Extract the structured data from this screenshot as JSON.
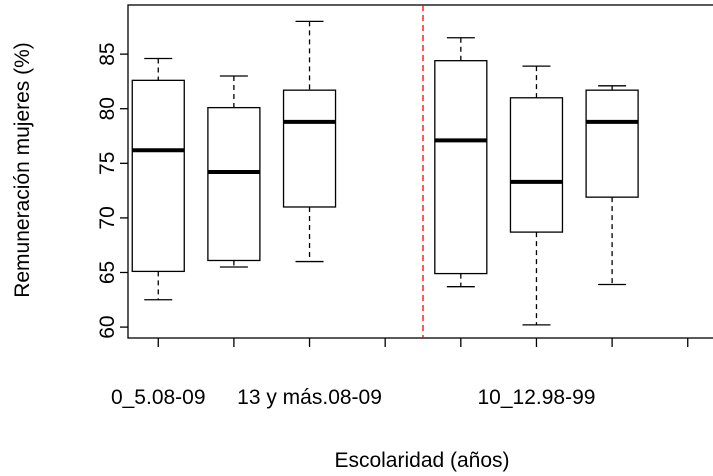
{
  "chart_data": {
    "type": "boxplot",
    "title": "",
    "xlabel": "Escolaridad (años)",
    "ylabel": "Remuneración mujeres (%)",
    "ylim": [
      59,
      89.5
    ],
    "yticks": [
      60,
      65,
      70,
      75,
      80,
      85
    ],
    "categories": [
      "0_5.08-09",
      "",
      "13 y más.08-09",
      "",
      "10_12.98-99",
      ""
    ],
    "visible_category_labels": [
      "0_5.08-09",
      "13 y más.08-09",
      "10_12.98-99"
    ],
    "boxes": [
      {
        "position": 1,
        "label": "0_5.08-09",
        "whisker_low": 62.5,
        "q1": 65.1,
        "median": 76.2,
        "q3": 82.6,
        "whisker_high": 84.6
      },
      {
        "position": 2,
        "label": "",
        "whisker_low": 65.5,
        "q1": 66.1,
        "median": 74.2,
        "q3": 80.1,
        "whisker_high": 83.0
      },
      {
        "position": 3,
        "label": "13 y más.08-09",
        "whisker_low": 66.0,
        "q1": 71.0,
        "median": 78.8,
        "q3": 81.7,
        "whisker_high": 88.0
      },
      {
        "position": 5,
        "label": "",
        "whisker_low": 63.7,
        "q1": 64.9,
        "median": 77.1,
        "q3": 84.4,
        "whisker_high": 86.5
      },
      {
        "position": 6,
        "label": "10_12.98-99",
        "whisker_low": 60.2,
        "q1": 68.7,
        "median": 73.3,
        "q3": 81.0,
        "whisker_high": 83.9
      },
      {
        "position": 7,
        "label": "",
        "whisker_low": 63.9,
        "q1": 71.9,
        "median": 78.8,
        "q3": 81.7,
        "whisker_high": 82.1
      }
    ],
    "xlim": [
      0.6,
      8.4
    ],
    "xticks": [
      1,
      2,
      3,
      4,
      5,
      6,
      7,
      8
    ],
    "reference_line": {
      "x": 4.5,
      "color": "#ff0000",
      "style": "dashed"
    },
    "grid": false,
    "legend": "none"
  }
}
